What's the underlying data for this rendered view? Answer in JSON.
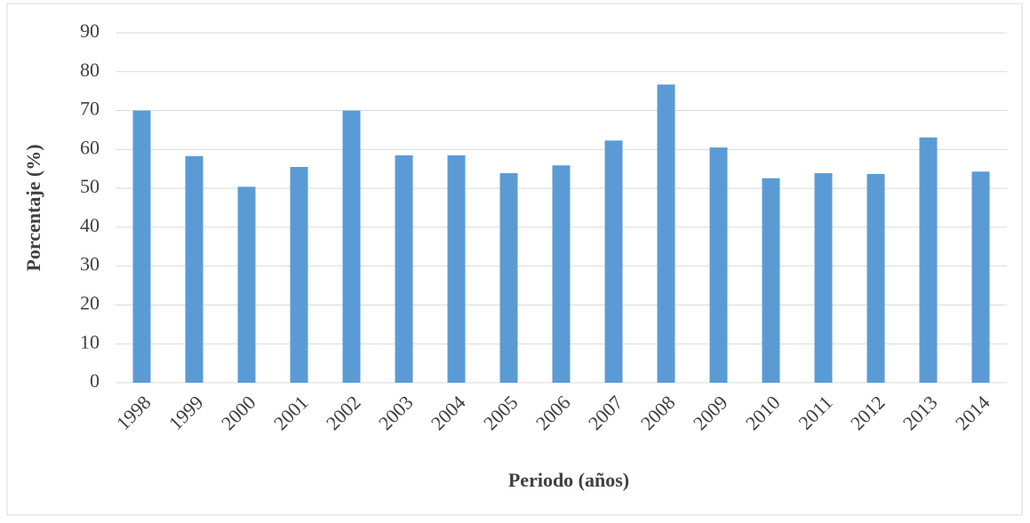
{
  "chart_data": {
    "type": "bar",
    "x_label": "Periodo (años)",
    "y_label": "Porcentaje (%)",
    "categories": [
      "1998",
      "1999",
      "2000",
      "2001",
      "2002",
      "2003",
      "2004",
      "2005",
      "2006",
      "2007",
      "2008",
      "2009",
      "2010",
      "2011",
      "2012",
      "2013",
      "2014"
    ],
    "values": [
      70,
      58.3,
      50.4,
      55.5,
      70,
      58.5,
      58.5,
      53.9,
      55.9,
      62.3,
      76.7,
      60.5,
      52.6,
      53.9,
      53.7,
      63.1,
      54.3
    ],
    "color": "#5b9bd5",
    "ylim": [
      0,
      90
    ],
    "yticks": [
      0,
      10,
      20,
      30,
      40,
      50,
      60,
      70,
      80,
      90
    ],
    "grid": true
  }
}
